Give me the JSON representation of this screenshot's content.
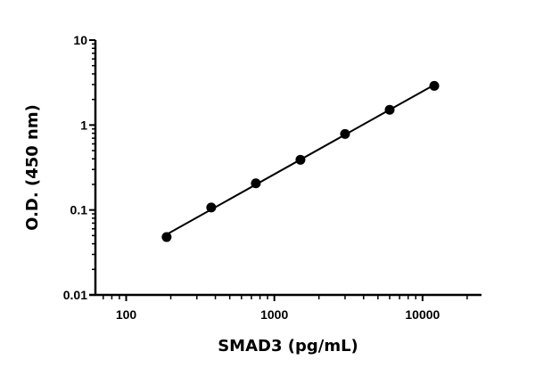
{
  "chart_data": {
    "type": "scatter",
    "title": "",
    "xlabel": "SMAD3 (pg/mL)",
    "ylabel": "O.D. (450 nm)",
    "x_scale": "log",
    "y_scale": "log",
    "xlim": [
      62,
      25000
    ],
    "ylim": [
      0.01,
      10
    ],
    "x_ticks": [
      "100",
      "1000",
      "10000"
    ],
    "x_tick_values": [
      100,
      1000,
      10000
    ],
    "y_ticks": [
      "0.01",
      "0.1",
      "1",
      "10"
    ],
    "y_tick_values": [
      0.01,
      0.1,
      1,
      10
    ],
    "grid": false,
    "fit_line": true,
    "marker_color": "#000000",
    "series": [
      {
        "x": [
          187.5,
          375,
          750,
          1500,
          3000,
          6000,
          12000
        ],
        "y": [
          0.048,
          0.107,
          0.206,
          0.39,
          0.785,
          1.51,
          2.89
        ]
      }
    ]
  }
}
